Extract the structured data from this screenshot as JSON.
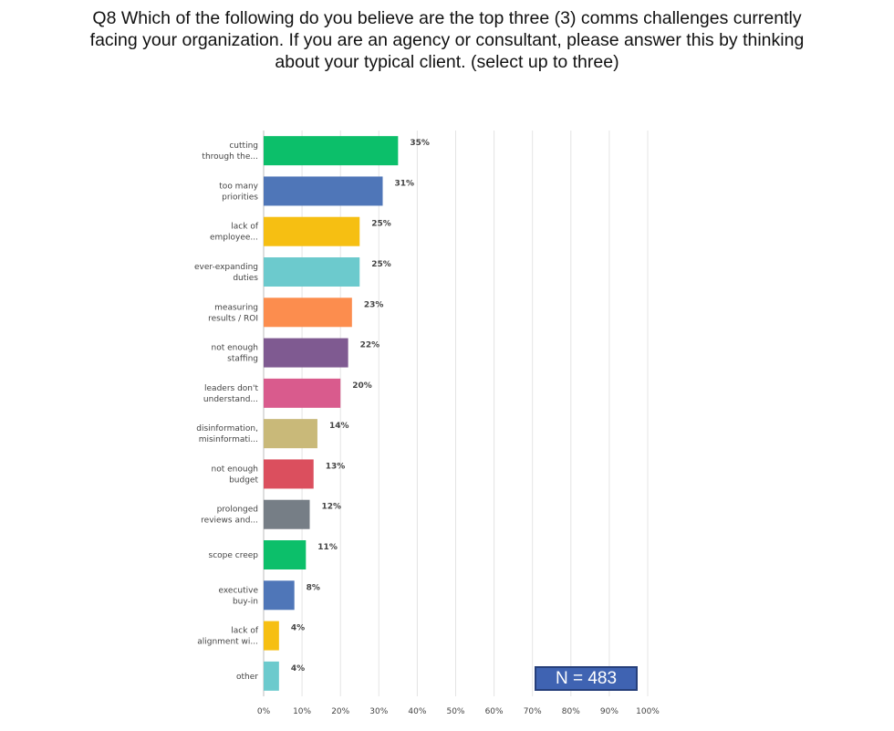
{
  "title_lines": [
    "Q8 Which of the following do you believe are the top three (3) comms challenges currently",
    "facing your organization. If you are an agency or consultant, please answer this by thinking",
    "about your typical client. (select up to three)"
  ],
  "n_label": "N = 483",
  "chart_data": {
    "type": "bar",
    "orientation": "horizontal",
    "categories": [
      [
        "cutting",
        "through the..."
      ],
      [
        "too many",
        "priorities"
      ],
      [
        "lack of",
        "employee..."
      ],
      [
        "ever-expanding",
        "duties"
      ],
      [
        "measuring",
        "results / ROI"
      ],
      [
        "not enough",
        "staffing"
      ],
      [
        "leaders don't",
        "understand..."
      ],
      [
        "disinformation,",
        "misinformati..."
      ],
      [
        "not enough",
        "budget"
      ],
      [
        "prolonged",
        "reviews and..."
      ],
      [
        "scope creep"
      ],
      [
        "executive",
        "buy-in"
      ],
      [
        "lack of",
        "alignment wi..."
      ],
      [
        "other"
      ]
    ],
    "values": [
      35,
      31,
      25,
      25,
      23,
      22,
      20,
      14,
      13,
      12,
      11,
      8,
      4,
      4
    ],
    "value_labels": [
      "35%",
      "31%",
      "25%",
      "25%",
      "23%",
      "22%",
      "20%",
      "14%",
      "13%",
      "12%",
      "11%",
      "8%",
      "4%",
      "4%"
    ],
    "colors": [
      "#0cbf6a",
      "#4f76b8",
      "#f6bf12",
      "#6ccacd",
      "#fc8d4e",
      "#7f5a91",
      "#d95b8d",
      "#c9b979",
      "#db4f5e",
      "#767e86",
      "#0cbf6a",
      "#4f76b8",
      "#f6bf12",
      "#6ccacd"
    ],
    "xlim": [
      0,
      100
    ],
    "xticks": [
      "0%",
      "10%",
      "20%",
      "30%",
      "40%",
      "50%",
      "60%",
      "70%",
      "80%",
      "90%",
      "100%"
    ],
    "grid": true
  }
}
